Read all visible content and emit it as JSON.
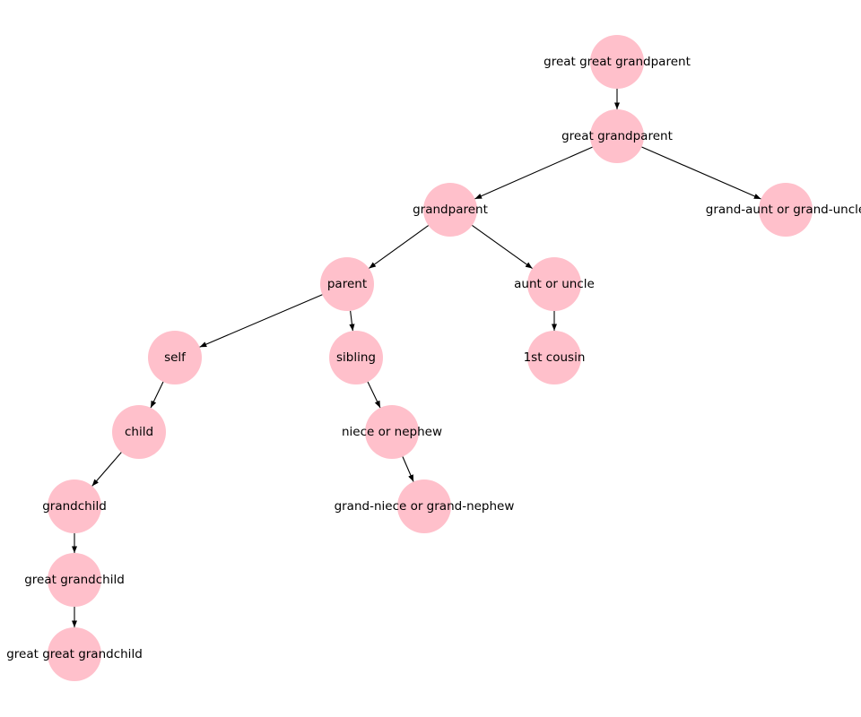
{
  "diagram": {
    "type": "directed-graph",
    "node_color": "#ffc0cb",
    "edge_color": "#000000",
    "nodes": [
      "great great grandparent",
      "great grandparent",
      "grandparent",
      "grand-aunt or grand-uncle",
      "parent",
      "aunt or uncle",
      "self",
      "sibling",
      "1st cousin",
      "child",
      "niece or nephew",
      "grandchild",
      "grand-niece or grand-nephew",
      "great grandchild",
      "great great grandchild"
    ],
    "edges": [
      [
        "great great grandparent",
        "great grandparent"
      ],
      [
        "great grandparent",
        "grandparent"
      ],
      [
        "great grandparent",
        "grand-aunt or grand-uncle"
      ],
      [
        "grandparent",
        "parent"
      ],
      [
        "grandparent",
        "aunt or uncle"
      ],
      [
        "parent",
        "self"
      ],
      [
        "parent",
        "sibling"
      ],
      [
        "aunt or uncle",
        "1st cousin"
      ],
      [
        "self",
        "child"
      ],
      [
        "sibling",
        "niece or nephew"
      ],
      [
        "child",
        "grandchild"
      ],
      [
        "niece or nephew",
        "grand-niece or grand-nephew"
      ],
      [
        "grandchild",
        "great grandchild"
      ],
      [
        "great grandchild",
        "great great grandchild"
      ]
    ]
  }
}
